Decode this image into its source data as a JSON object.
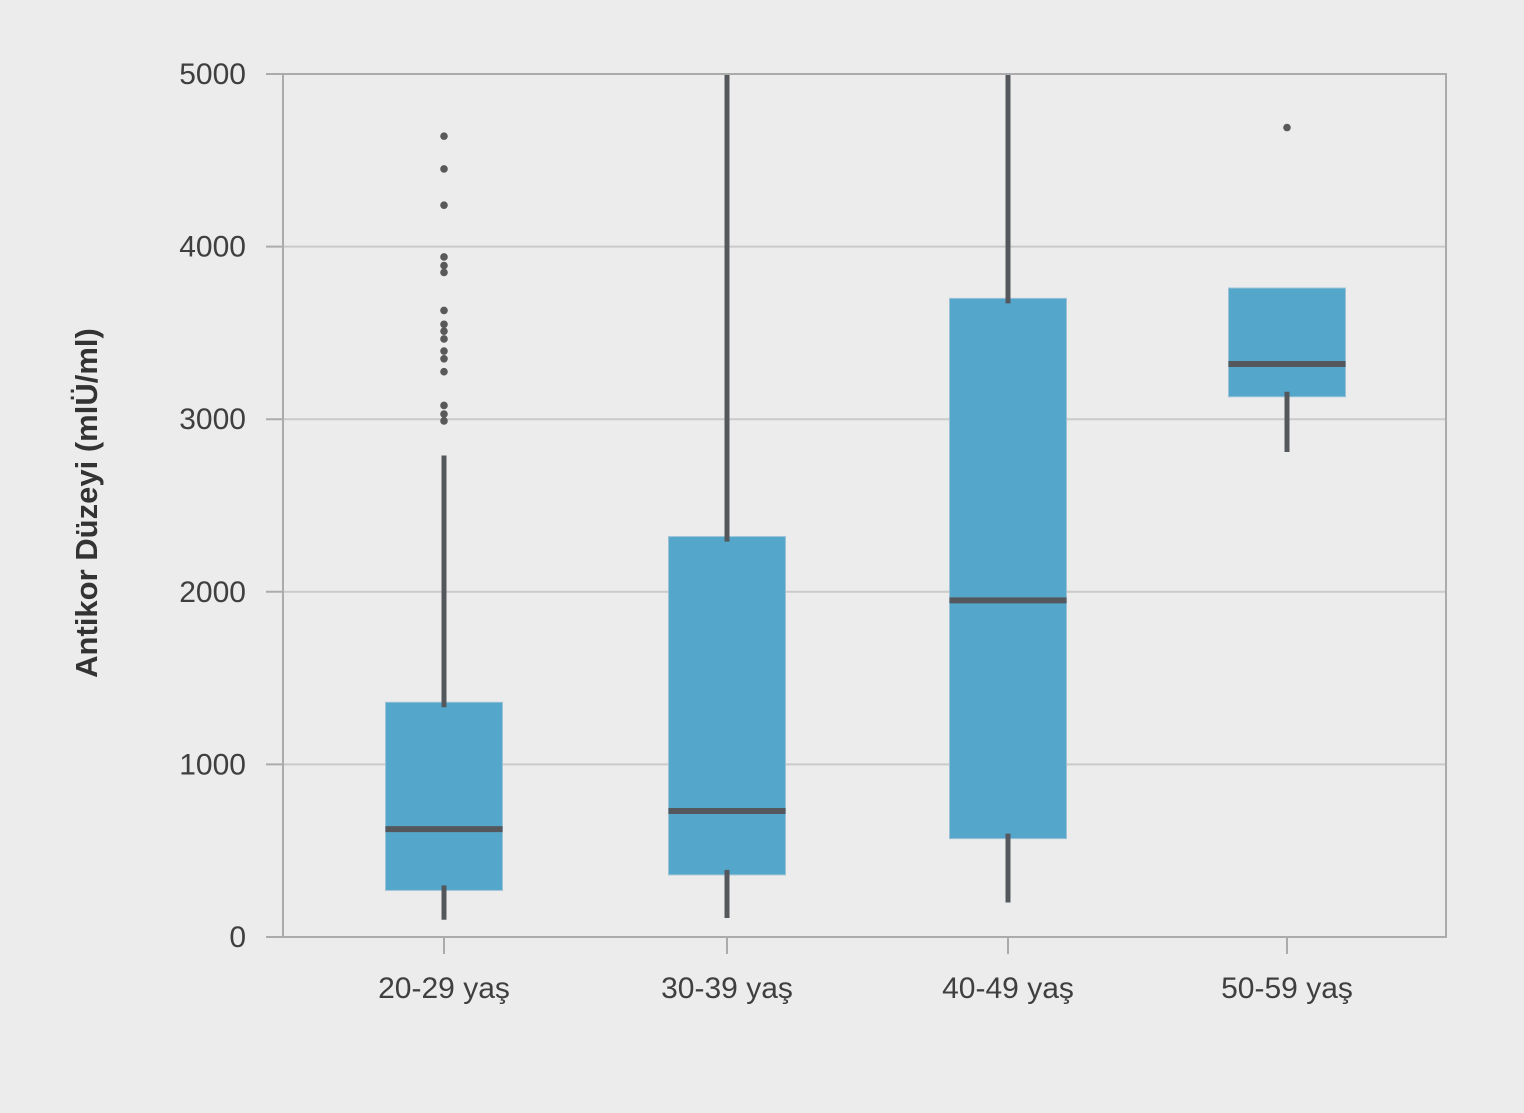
{
  "chart_data": {
    "type": "box",
    "title": "",
    "xlabel": "",
    "ylabel": "Antikor Düzeyi (mlÜ/ml)",
    "ylim": [
      0,
      5000
    ],
    "y_ticks": [
      0,
      1000,
      2000,
      3000,
      4000,
      5000
    ],
    "y_tick_labels": [
      "0",
      "1000",
      "2000",
      "3000",
      "4000",
      "5000"
    ],
    "categories": [
      "20-29 yaş",
      "30-39 yaş",
      "40-49 yaş",
      "50-59 yaş"
    ],
    "grid": true,
    "legend": "none",
    "boxes": [
      {
        "category": "20-29 yaş",
        "whisker_low": 100,
        "q1": 270,
        "median": 625,
        "q3": 1360,
        "whisker_high": 2790,
        "outliers": [
          2990,
          3030,
          3080,
          3275,
          3350,
          3395,
          3465,
          3510,
          3550,
          3630,
          3850,
          3890,
          3940,
          4240,
          4450,
          4640
        ]
      },
      {
        "category": "30-39 yaş",
        "whisker_low": 110,
        "q1": 360,
        "median": 730,
        "q3": 2320,
        "whisker_high": 5000,
        "outliers": []
      },
      {
        "category": "40-49 yaş",
        "whisker_low": 200,
        "q1": 570,
        "median": 1950,
        "q3": 3700,
        "whisker_high": 5000,
        "outliers": []
      },
      {
        "category": "50-59 yaş",
        "whisker_low": 2810,
        "q1": 3130,
        "median": 3320,
        "q3": 3760,
        "whisker_high": 3760,
        "outliers": [
          4690
        ]
      }
    ],
    "colors": {
      "background": "#ECECEC",
      "grid": "#CACACA",
      "frame": "#ABABAB",
      "box_fill": "#54A7CB",
      "box_stroke": "#9CC2D6",
      "whisker_median": "#54585C",
      "outlier": "#595959",
      "tick_text": "#3F3F3F",
      "axis_label_text": "#333333"
    }
  }
}
